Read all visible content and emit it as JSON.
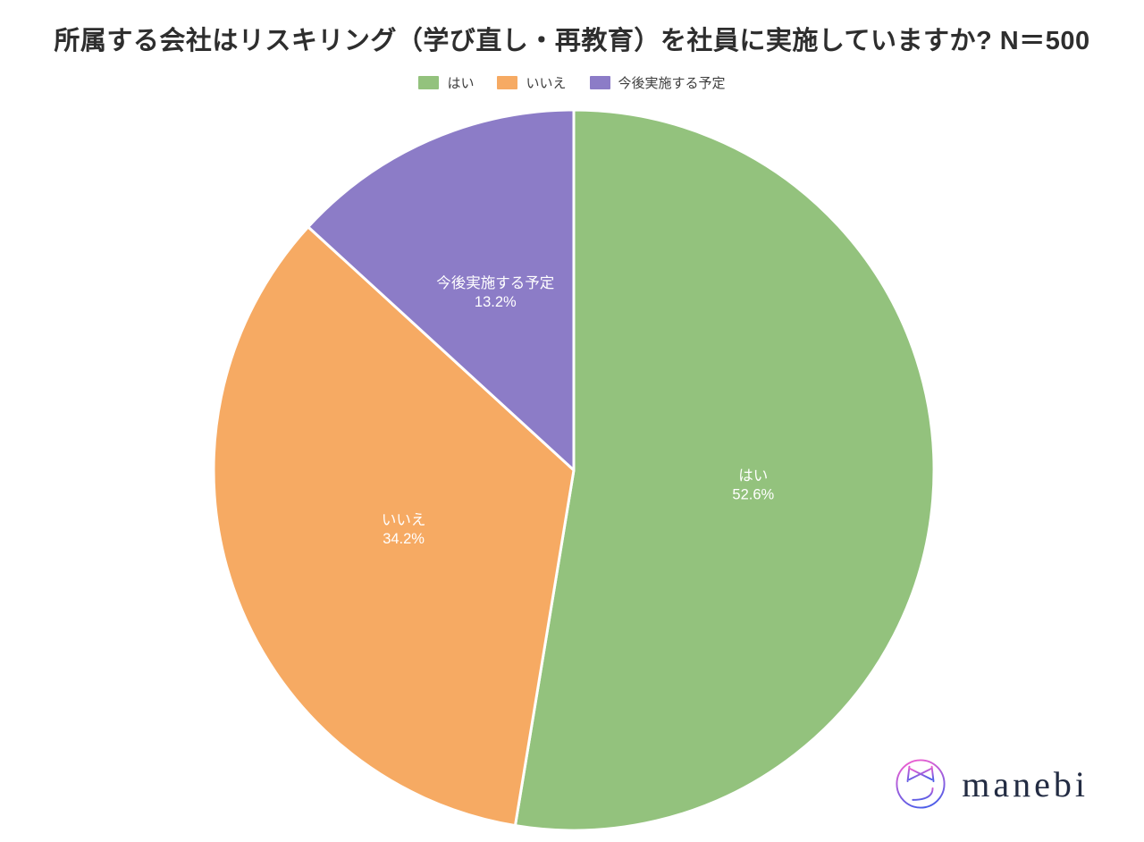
{
  "chart_data": {
    "type": "pie",
    "title": "所属する会社はリスキリング（学び直し・再教育）を社員に実施していますか? N＝500",
    "slices": [
      {
        "label": "はい",
        "value": 52.6,
        "percent_label": "52.6%",
        "color": "#93c27d"
      },
      {
        "label": "いいえ",
        "value": 34.2,
        "percent_label": "34.2%",
        "color": "#f6aa63"
      },
      {
        "label": "今後実施する予定",
        "value": 13.2,
        "percent_label": "13.2%",
        "color": "#8c7cc7"
      }
    ],
    "total": 100,
    "legend_position": "top",
    "start_angle_deg": 0,
    "direction": "clockwise",
    "slice_label_color": "#ffffff",
    "slice_separator_color": "#ffffff"
  },
  "branding": {
    "logo_text": "manebi",
    "logo_gradient_top": "#ef5fd0",
    "logo_gradient_bottom": "#4d5ee8",
    "text_color": "#232c43"
  },
  "colors": {
    "title_text": "#2e2e2e",
    "legend_text": "#3d3d3d",
    "background": "#ffffff"
  }
}
